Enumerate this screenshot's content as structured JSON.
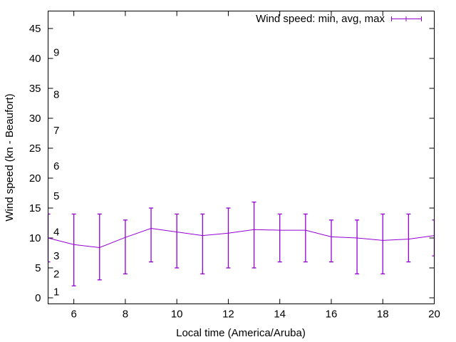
{
  "chart_data": {
    "type": "line",
    "subtype": "errorbars",
    "title": "",
    "xlabel": "Local time (America/Aruba)",
    "ylabel": "Wind speed (kn - Beaufort)",
    "xlim": [
      5,
      20
    ],
    "ylim": [
      -1,
      47.5
    ],
    "xticks": [
      6,
      8,
      10,
      12,
      14,
      16,
      18,
      20
    ],
    "yticks": [
      0,
      5,
      10,
      15,
      20,
      25,
      30,
      35,
      40,
      45
    ],
    "grid": false,
    "legend": {
      "position": "top-right",
      "entries": [
        "Wind speed: min, avg, max"
      ]
    },
    "color": "#9400d3",
    "series": [
      {
        "name": "Wind speed: min, avg, max",
        "x": [
          5,
          6,
          7,
          8,
          9,
          10,
          11,
          12,
          13,
          14,
          15,
          16,
          17,
          18,
          19,
          20
        ],
        "avg": [
          10.0,
          8.9,
          8.4,
          10.1,
          11.6,
          11.0,
          10.4,
          10.8,
          11.4,
          11.3,
          11.3,
          10.2,
          10.0,
          9.6,
          9.8,
          10.4
        ],
        "min": [
          6,
          2,
          3,
          4,
          6,
          5,
          4,
          5,
          5,
          6,
          6,
          6,
          4,
          4,
          6,
          7
        ],
        "max": [
          14,
          14,
          14,
          13,
          15,
          14,
          14,
          15,
          16,
          14,
          14,
          13,
          13,
          14,
          14,
          13
        ]
      }
    ],
    "annotations": [
      {
        "text": "1",
        "y": 1
      },
      {
        "text": "2",
        "y": 4
      },
      {
        "text": "3",
        "y": 7
      },
      {
        "text": "4",
        "y": 11
      },
      {
        "text": "5",
        "y": 17
      },
      {
        "text": "6",
        "y": 22
      },
      {
        "text": "7",
        "y": 28
      },
      {
        "text": "8",
        "y": 34
      },
      {
        "text": "9",
        "y": 41
      }
    ]
  }
}
